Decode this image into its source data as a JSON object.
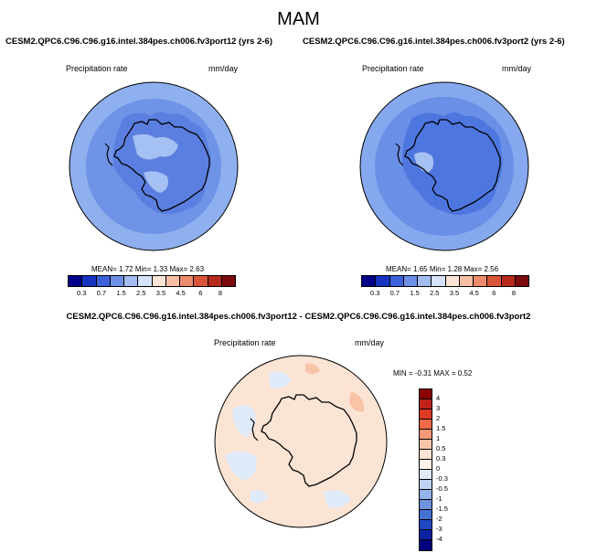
{
  "title": "MAM",
  "panels": [
    {
      "case_title": "CESM2.QPC6.C96.C96.g16.intel.384pes.ch006.fv3port12 (yrs 2-6)",
      "variable": "Precipitation rate",
      "units": "mm/day",
      "stats": {
        "mean_label": "MEAN=",
        "mean": "1.72",
        "min_label": "Min=",
        "min": "1.33",
        "max_label": "Max=",
        "max": "2.63"
      },
      "colorbar": {
        "colors": [
          "#00008b",
          "#1734c0",
          "#3b62da",
          "#6e8fe8",
          "#a3bcf2",
          "#d5e2f8",
          "#fbe4d6",
          "#f6bea5",
          "#ec8b6d",
          "#d9553a",
          "#b52a1b",
          "#7d0b0b"
        ],
        "ticks": [
          "0.3",
          "0.7",
          "1",
          "1.5",
          "2",
          "2.5",
          "3",
          "3.5",
          "4",
          "4.5",
          "5",
          "6",
          "7",
          "8"
        ],
        "tick_labels_shown": [
          "0.3",
          "0.7",
          "1.5",
          "2.5",
          "3.5",
          "4.5",
          "6",
          "8"
        ]
      }
    },
    {
      "case_title": "CESM2.QPC6.C96.C96.g16.intel.384pes.ch006.fv3port2 (yrs 2-6)",
      "variable": "Precipitation rate",
      "units": "mm/day",
      "stats": {
        "mean_label": "MEAN=",
        "mean": "1.65",
        "min_label": "Min=",
        "min": "1.28",
        "max_label": "Max=",
        "max": "2.56"
      },
      "colorbar": {
        "colors": [
          "#00008b",
          "#1734c0",
          "#3b62da",
          "#6e8fe8",
          "#a3bcf2",
          "#d5e2f8",
          "#fbe4d6",
          "#f6bea5",
          "#ec8b6d",
          "#d9553a",
          "#b52a1b",
          "#7d0b0b"
        ],
        "tick_labels_shown": [
          "0.3",
          "0.7",
          "1.5",
          "2.5",
          "3.5",
          "4.5",
          "6",
          "8"
        ]
      }
    }
  ],
  "diff_panel": {
    "case_title": "CESM2.QPC6.C96.C96.g16.intel.384pes.ch006.fv3port12 - CESM2.QPC6.C96.C96.g16.intel.384pes.ch006.fv3port2",
    "variable": "Precipitation rate",
    "units": "mm/day",
    "stats": {
      "min_label": "MIN =",
      "min": "-0.31",
      "max_label": "MAX =",
      "max": "0.52"
    },
    "colorbar": {
      "colors": [
        "#8b0000",
        "#c0221a",
        "#df3a24",
        "#ef6a45",
        "#f69878",
        "#f9c3a8",
        "#fbe4d4",
        "#fdf2ea",
        "#dfeaf8",
        "#bdd2f2",
        "#94b3ea",
        "#6f93e0",
        "#4470d4",
        "#1f47c4",
        "#0a22a2",
        "#00007e"
      ],
      "labels": [
        "4",
        "3",
        "2",
        "1.5",
        "1",
        "0.5",
        "0.3",
        "0",
        "-0.3",
        "-0.5",
        "-1",
        "-1.5",
        "-2",
        "-3",
        "-4"
      ]
    }
  }
}
